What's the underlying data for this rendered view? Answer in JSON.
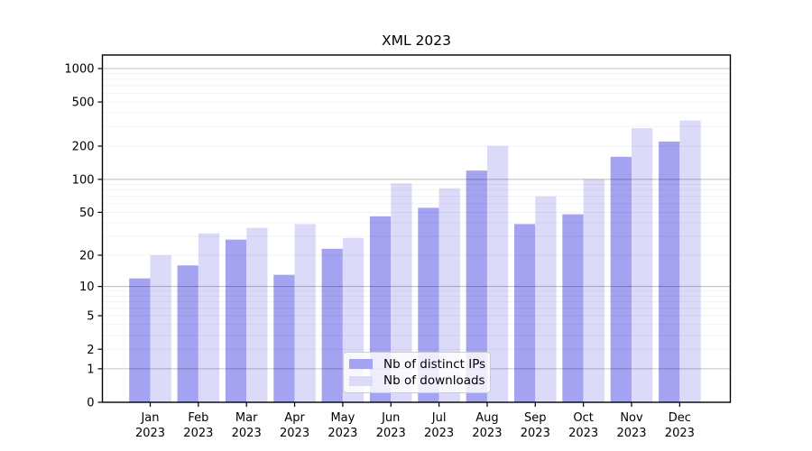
{
  "title": "XML 2023",
  "legend": {
    "items": [
      {
        "label": "Nb of distinct IPs",
        "color": "#a3a3f2"
      },
      {
        "label": "Nb of downloads",
        "color": "#dbdbf9"
      }
    ],
    "position": "lower center"
  },
  "chart_data": {
    "type": "bar",
    "title": "XML 2023",
    "categories": [
      "Jan",
      "Feb",
      "Mar",
      "Apr",
      "May",
      "Jun",
      "Jul",
      "Aug",
      "Sep",
      "Oct",
      "Nov",
      "Dec"
    ],
    "year_label": "2023",
    "series": [
      {
        "name": "Nb of distinct IPs",
        "color": "#a3a3f2",
        "values": [
          12,
          16,
          28,
          13,
          23,
          46,
          55,
          120,
          39,
          48,
          160,
          220
        ]
      },
      {
        "name": "Nb of downloads",
        "color": "#dbdbf9",
        "values": [
          20,
          32,
          36,
          39,
          29,
          92,
          83,
          200,
          70,
          100,
          290,
          340
        ]
      }
    ],
    "yticks": [
      0,
      1,
      2,
      5,
      10,
      20,
      50,
      100,
      200,
      500,
      1000
    ],
    "ylim": [
      0,
      1325
    ],
    "yscale": "log1p",
    "xlabel": "",
    "ylabel": "",
    "grid": "horizontal major (1,10,100,1000) + faint minors, drawn over bars",
    "legend_position": "lower center",
    "colors": {
      "bar_ips": "#a3a3f2",
      "bar_downloads": "#dbdbf9",
      "major_grid": "rgba(0,0,0,0.24)",
      "minor_grid": "rgba(0,0,0,0.06)",
      "frame": "#000000",
      "text": "#000000"
    }
  }
}
